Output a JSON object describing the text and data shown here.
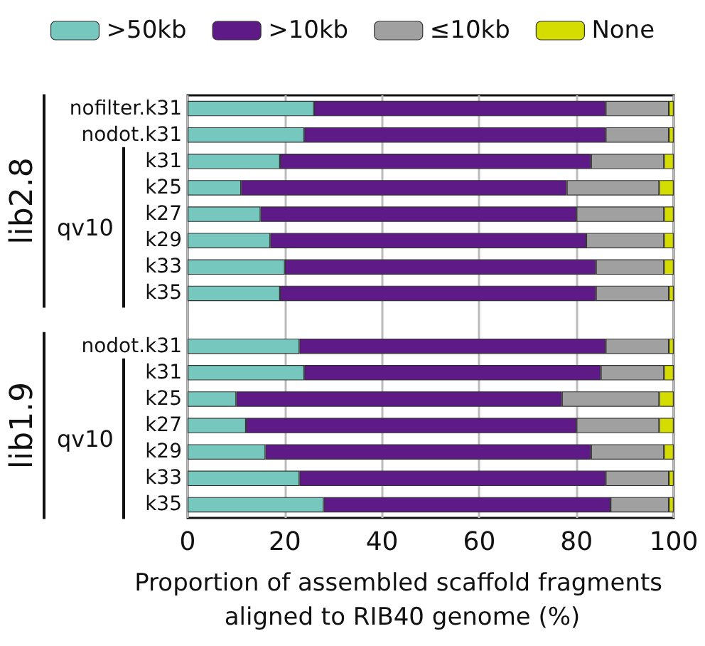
{
  "chart_data": {
    "type": "bar",
    "orientation": "horizontal",
    "stacked": true,
    "categories": [
      "nofilter.k31",
      "nodot.k31",
      "k31",
      "k25",
      "k27",
      "k29",
      "k33",
      "k35",
      null,
      "nodot.k31",
      "k31",
      "k25",
      "k27",
      "k29",
      "k33",
      "k35"
    ],
    "series": [
      {
        "name": ">50kb",
        "color": "#76c8bf",
        "values": [
          26,
          24,
          19,
          11,
          15,
          17,
          20,
          19,
          null,
          23,
          24,
          10,
          12,
          16,
          23,
          28
        ]
      },
      {
        "name": ">10kb",
        "color": "#5e1a87",
        "values": [
          60,
          62,
          64,
          67,
          65,
          65,
          64,
          65,
          null,
          63,
          61,
          67,
          68,
          67,
          63,
          59
        ]
      },
      {
        "name": "≤10kb",
        "color": "#a0a0a0",
        "values": [
          13,
          13,
          15,
          19,
          18,
          16,
          14,
          15,
          null,
          13,
          13,
          20,
          17,
          15,
          13,
          12
        ]
      },
      {
        "name": "None",
        "color": "#d4dc00",
        "values": [
          1,
          1,
          2,
          3,
          2,
          2,
          2,
          1,
          null,
          1,
          2,
          3,
          3,
          2,
          1,
          1
        ]
      }
    ],
    "xlabel": "Proportion of assembled scaffold fragments aligned to RIB40 genome (%)",
    "xlim": [
      0,
      100
    ],
    "xticks": [
      0,
      20,
      40,
      60,
      80,
      100
    ],
    "annotations": [
      "lib2.8",
      "qv10",
      "lib1.9",
      "qv10"
    ],
    "grid": "x",
    "legend": "top"
  }
}
